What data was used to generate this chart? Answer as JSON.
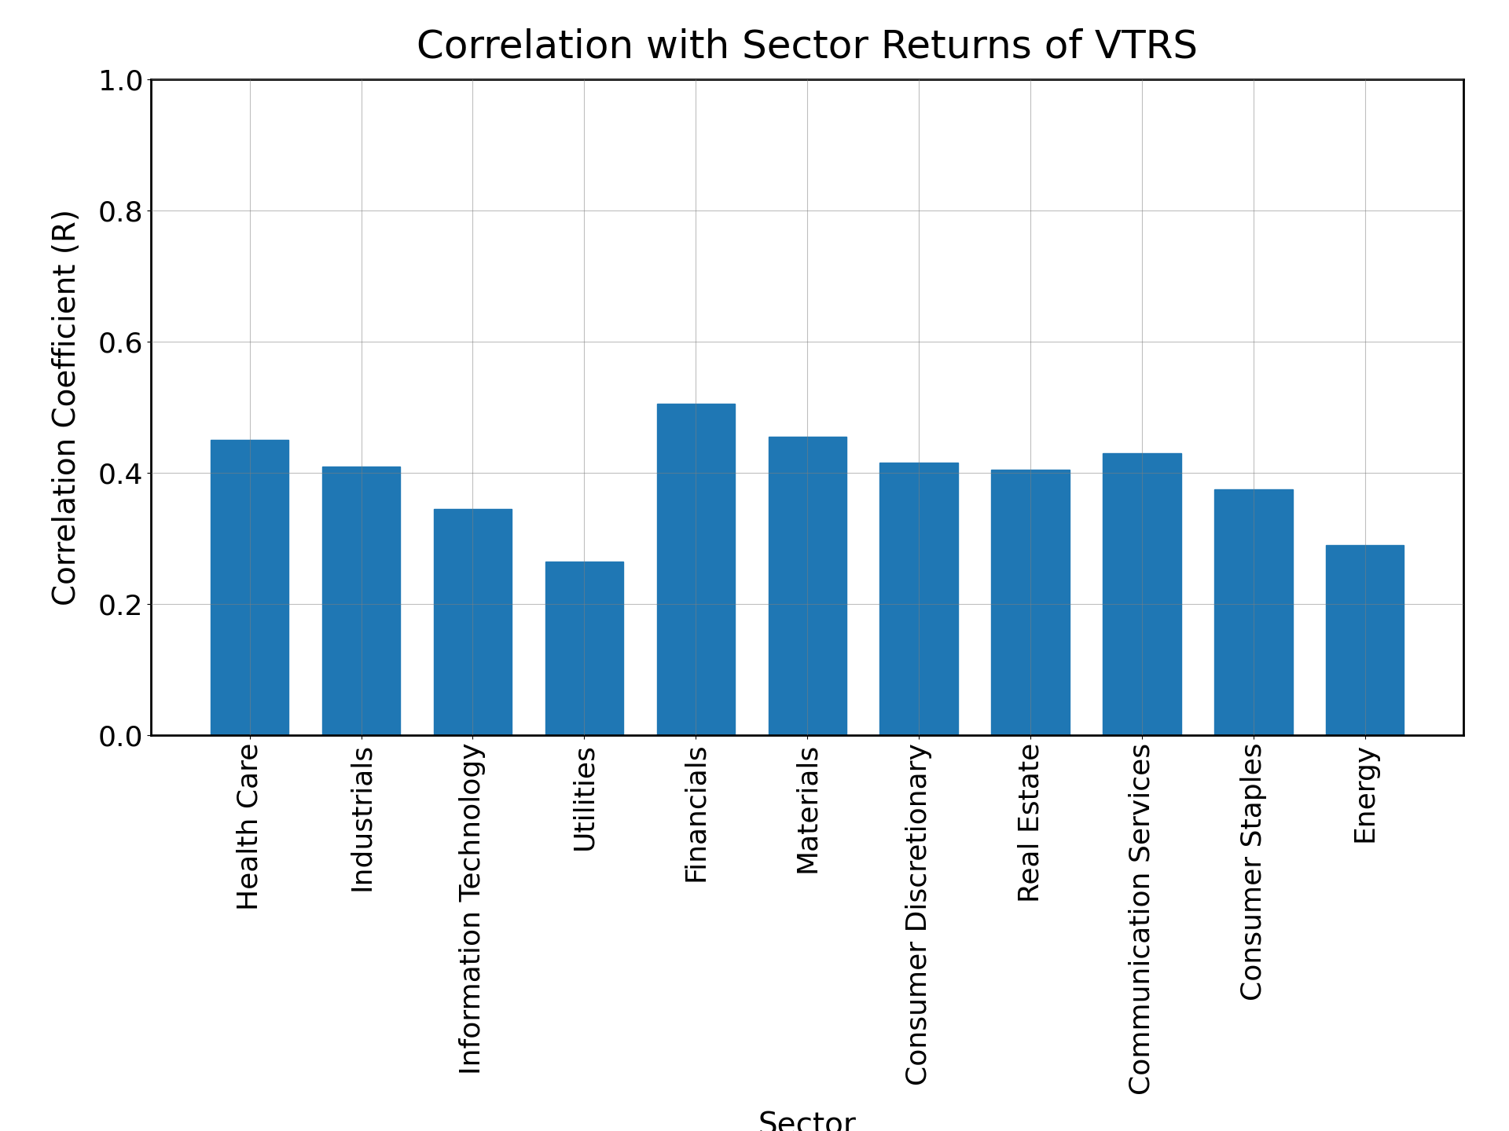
{
  "title": "Correlation with Sector Returns of VTRS",
  "xlabel": "Sector",
  "ylabel": "Correlation Coefficient (R)",
  "categories": [
    "Health Care",
    "Industrials",
    "Information Technology",
    "Utilities",
    "Financials",
    "Materials",
    "Consumer Discretionary",
    "Real Estate",
    "Communication Services",
    "Consumer Staples",
    "Energy"
  ],
  "values": [
    0.45,
    0.41,
    0.345,
    0.265,
    0.505,
    0.455,
    0.415,
    0.405,
    0.43,
    0.375,
    0.29
  ],
  "bar_color": "#1f77b4",
  "ylim": [
    0.0,
    1.0
  ],
  "yticks": [
    0.0,
    0.2,
    0.4,
    0.6,
    0.8,
    1.0
  ],
  "title_fontsize": 36,
  "label_fontsize": 28,
  "tick_fontsize": 26,
  "background_color": "#ffffff",
  "grid": true,
  "bar_width": 0.7
}
